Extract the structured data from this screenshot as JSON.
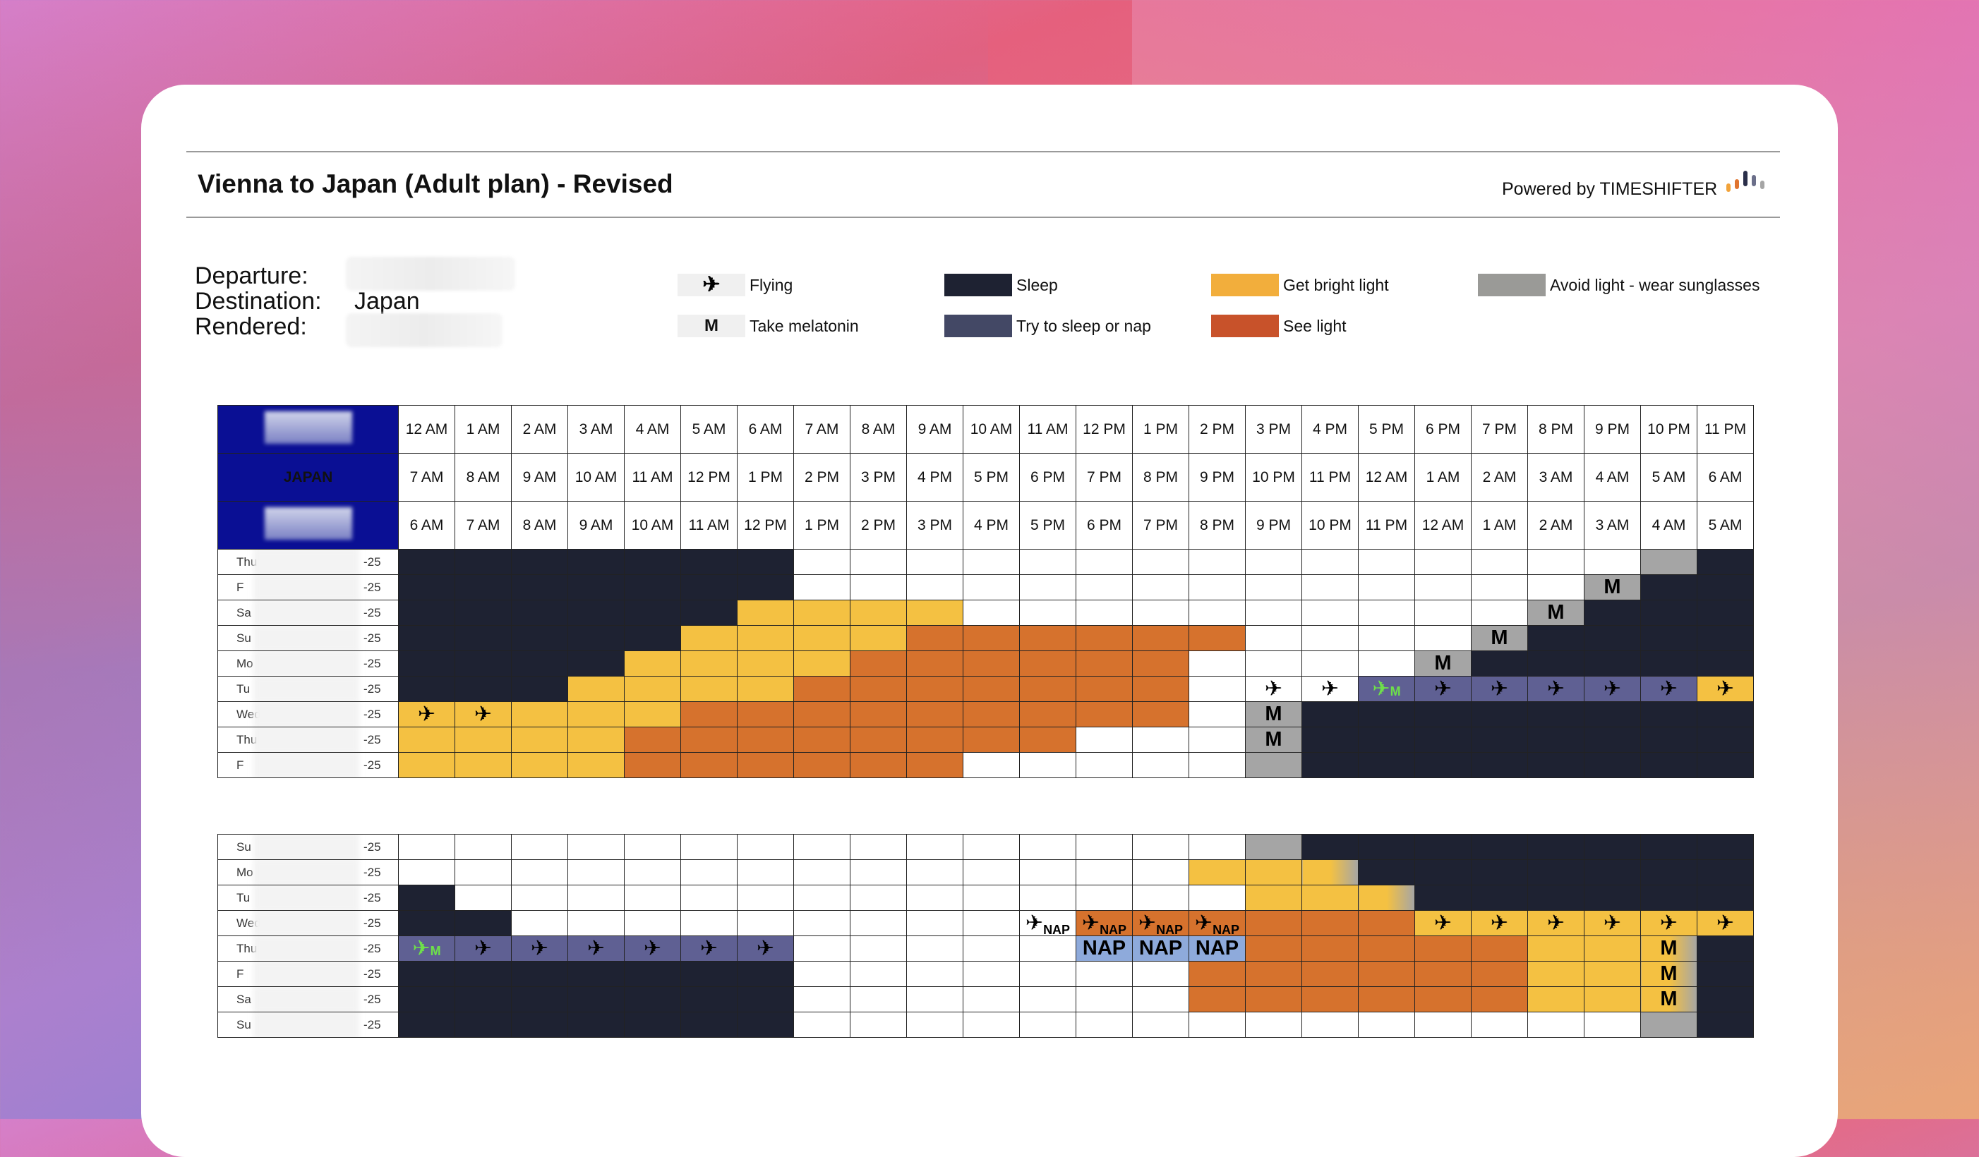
{
  "doc": {
    "title": "Vienna to Japan (Adult plan) - Revised",
    "powered_by": "Powered by TIMESHIFTER",
    "labels": {
      "departure": "Departure:",
      "destination": "Destination:",
      "rendered": "Rendered:"
    },
    "destination_value": "Japan"
  },
  "legend": [
    {
      "label": "Flying",
      "icon": "airplane-icon",
      "color": "#f0f0f0"
    },
    {
      "label": "Take melatonin",
      "icon": "melatonin-m-icon",
      "color": "#f0f0f0",
      "glyph": "M"
    },
    {
      "label": "Sleep",
      "color": "#1e2232"
    },
    {
      "label": "Try to sleep or nap",
      "color": "#434865"
    },
    {
      "label": "Get bright light",
      "color": "#f2ae3c"
    },
    {
      "label": "See light",
      "color": "#c8522a"
    },
    {
      "label": "Avoid light - wear sunglasses",
      "color": "#9a9a97"
    }
  ],
  "zone_label": "JAPAN",
  "hours_row1": [
    "12 AM",
    "1 AM",
    "2 AM",
    "3 AM",
    "4 AM",
    "5 AM",
    "6 AM",
    "7 AM",
    "8 AM",
    "9 AM",
    "10 AM",
    "11 AM",
    "12 PM",
    "1 PM",
    "2 PM",
    "3 PM",
    "4 PM",
    "5 PM",
    "6 PM",
    "7 PM",
    "8 PM",
    "9 PM",
    "10 PM",
    "11 PM"
  ],
  "hours_row2": [
    "7 AM",
    "8 AM",
    "9 AM",
    "10 AM",
    "11 AM",
    "12 PM",
    "1 PM",
    "2 PM",
    "3 PM",
    "4 PM",
    "5 PM",
    "6 PM",
    "7 PM",
    "8 PM",
    "9 PM",
    "10 PM",
    "11 PM",
    "12 AM",
    "1 AM",
    "2 AM",
    "3 AM",
    "4 AM",
    "5 AM",
    "6 AM"
  ],
  "hours_row3": [
    "6 AM",
    "7 AM",
    "8 AM",
    "9 AM",
    "10 AM",
    "11 AM",
    "12 PM",
    "1 PM",
    "2 PM",
    "3 PM",
    "4 PM",
    "5 PM",
    "6 PM",
    "7 PM",
    "8 PM",
    "9 PM",
    "10 PM",
    "11 PM",
    "12 AM",
    "1 AM",
    "2 AM",
    "3 AM",
    "4 AM",
    "5 AM"
  ],
  "table1_days": [
    {
      "name": "Thu",
      "year": "-25",
      "cells": "SSSSSSSWWWWWWWWWWWWWWWAS"
    },
    {
      "name": "F",
      "year": "-25",
      "cells": "SSSSSSSWWWWWWWWWWWWWWMSS"
    },
    {
      "name": "Sa",
      "year": "-25",
      "cells": "SSSSSSBBBBWWWWWWWWWWMSSS"
    },
    {
      "name": "Su",
      "year": "-25",
      "cells": "SSSSSBBBBEEEEEEWWWWMSSSS"
    },
    {
      "name": "Mo",
      "year": "-25",
      "cells": "SSSSBBBBEEEEEEWWWWMSSSSS"
    },
    {
      "name": "Tu",
      "year": "-25",
      "cells": "SSSBBBBEEEEEEEWPPGNNNNNY"
    },
    {
      "name": "Wed",
      "year": "-25",
      "cells": "YYBBBEEEEEEEEEWMSSSSSSSS"
    },
    {
      "name": "Thu",
      "year": "-25",
      "cells": "BBBBEEEEEEEEWWWMSSSSSSSS"
    },
    {
      "name": "F",
      "year": "-25",
      "cells": "BBBBEEEEEEWWWWWASSSSSSSS"
    }
  ],
  "table2_days": [
    {
      "name": "Su",
      "year": "-25",
      "cells": "WWWWWWWWWWWWWWWASSSSSSSS"
    },
    {
      "name": "Mo",
      "year": "-25",
      "cells": "WWWWWWWWWWWWWWBBXSSSSSSS"
    },
    {
      "name": "Tu",
      "year": "-25",
      "cells": "SWWWWWWWWWWWWWWBBXSSSSSS"
    },
    {
      "name": "Wed",
      "year": "-25",
      "cells": "SSWWWWWWWWWKLLLEEEYYYYYY"
    },
    {
      "name": "Thu",
      "year": "-25",
      "cells": "GNNNNNNWWWWWQQQEEEEEBBZS"
    },
    {
      "name": "F",
      "year": "-25",
      "cells": "SSSSSSSWWWWWWWEEEEEEBBZS"
    },
    {
      "name": "Sa",
      "year": "-25",
      "cells": "SSSSSSSWWWWWWWEEEEEEBBZS"
    },
    {
      "name": "Su",
      "year": "-25",
      "cells": "SSSSSSSWWWWWWWWWWWWWWWAS"
    }
  ],
  "cell_text": {
    "melatonin": "M",
    "nap": "NAP"
  }
}
